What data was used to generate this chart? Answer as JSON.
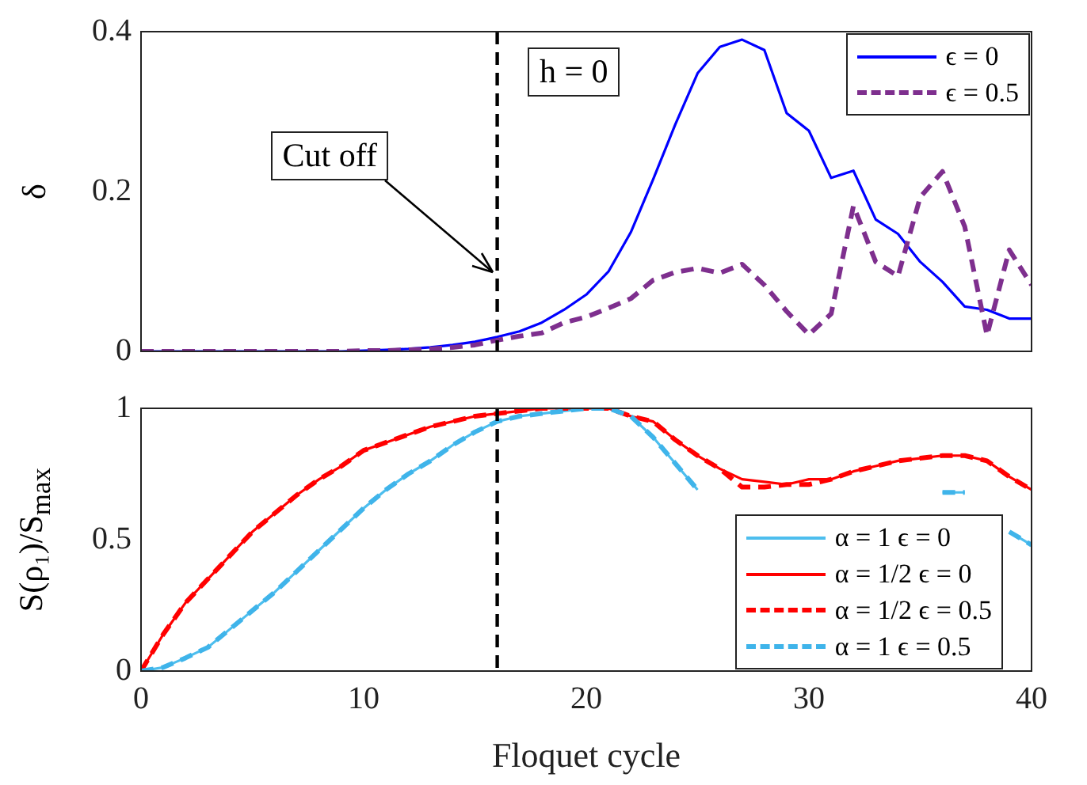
{
  "chart_data": [
    {
      "type": "line",
      "ylabel": "δ",
      "x": [
        0,
        1,
        2,
        3,
        4,
        5,
        6,
        7,
        8,
        9,
        10,
        11,
        12,
        13,
        14,
        15,
        16,
        17,
        18,
        19,
        20,
        21,
        22,
        23,
        24,
        25,
        26,
        27,
        28,
        29,
        30,
        31,
        32,
        33,
        34,
        35,
        36,
        37,
        38,
        39,
        40
      ],
      "xlim": [
        0,
        40
      ],
      "xticks": [
        0,
        10,
        20,
        30,
        40
      ],
      "ylim": [
        0,
        0.4
      ],
      "yticks": [
        0,
        0.2,
        0.4
      ],
      "tick_labels": "y",
      "legend": "top right",
      "marker": "none",
      "series": [
        {
          "name": "ϵ = 0",
          "color": "#0000ff",
          "line_style": "solid",
          "values": [
            0,
            0,
            0,
            0,
            0,
            0,
            0,
            0,
            0,
            0,
            0.001,
            0.002,
            0.003,
            0.005,
            0.008,
            0.012,
            0.018,
            0.025,
            0.036,
            0.052,
            0.071,
            0.1,
            0.149,
            0.215,
            0.284,
            0.348,
            0.381,
            0.39,
            0.377,
            0.298,
            0.276,
            0.217,
            0.226,
            0.165,
            0.147,
            0.112,
            0.087,
            0.056,
            0.052,
            0.041,
            0.041
          ]
        },
        {
          "name": "ϵ = 0.5",
          "color": "#7e2f8e",
          "line_style": "dashed",
          "values": [
            0,
            0,
            0,
            0,
            0,
            0,
            0,
            0,
            0,
            0,
            0.001,
            0.001,
            0.002,
            0.003,
            0.005,
            0.008,
            0.014,
            0.019,
            0.023,
            0.036,
            0.043,
            0.054,
            0.066,
            0.089,
            0.099,
            0.104,
            0.098,
            0.109,
            0.083,
            0.05,
            0.021,
            0.047,
            0.182,
            0.112,
            0.094,
            0.193,
            0.225,
            0.156,
            0.02,
            0.127,
            0.083
          ]
        }
      ],
      "ref_lines": [
        {
          "axis": "x",
          "value": 16,
          "color": "#000000",
          "line_style": "dashed"
        }
      ],
      "annotations": [
        "h = 0",
        {
          "text": "Cut off",
          "x": 15.8,
          "y": 0.1
        }
      ]
    },
    {
      "type": "line",
      "xlabel": "Floquet cycle",
      "ylabel": "S(ρ₁)/S$_{max}$",
      "x": [
        0,
        1,
        2,
        3,
        4,
        5,
        6,
        7,
        8,
        9,
        10,
        11,
        12,
        13,
        14,
        15,
        16,
        17,
        18,
        19,
        20,
        21,
        22,
        23,
        24,
        25,
        26,
        27,
        28,
        29,
        30,
        31,
        32,
        33,
        34,
        35,
        36,
        37,
        38,
        39,
        40
      ],
      "xlim": [
        0,
        40
      ],
      "xticks": [
        0,
        10,
        20,
        30,
        40
      ],
      "ylim": [
        0,
        1
      ],
      "yticks": [
        0,
        0.5,
        1
      ],
      "legend": "bottom right",
      "marker": "none",
      "series": [
        {
          "name": "α = 1 ϵ = 0",
          "color": "#4dbeee",
          "line_style": "solid",
          "values": [
            0,
            0.014,
            0.05,
            0.09,
            0.16,
            0.23,
            0.3,
            0.38,
            0.46,
            0.54,
            0.62,
            0.69,
            0.75,
            0.8,
            0.86,
            0.91,
            0.95,
            0.97,
            0.98,
            0.99,
            1,
            1,
            0.97,
            0.89,
            0.79,
            0.69,
            null,
            null,
            null,
            null,
            null,
            null,
            null,
            null,
            null,
            null,
            0.68,
            0.68,
            null,
            0.53,
            0.48
          ]
        },
        {
          "name": "α = 1/2 ϵ = 0",
          "color": "#ff0000",
          "line_style": "solid",
          "values": [
            0,
            0.14,
            0.26,
            0.35,
            0.44,
            0.53,
            0.6,
            0.67,
            0.73,
            0.78,
            0.84,
            0.87,
            0.9,
            0.93,
            0.95,
            0.97,
            0.98,
            0.99,
            1,
            1,
            1,
            1,
            0.97,
            0.95,
            0.88,
            0.82,
            0.77,
            0.73,
            0.72,
            0.71,
            0.73,
            0.73,
            0.76,
            0.78,
            0.8,
            0.81,
            0.82,
            0.82,
            0.8,
            0.74,
            0.69
          ]
        },
        {
          "name": "α = 1/2 ϵ = 0.5",
          "color": "#ff0000",
          "line_style": "dashed",
          "values": [
            0,
            0.14,
            0.26,
            0.35,
            0.44,
            0.53,
            0.6,
            0.67,
            0.73,
            0.78,
            0.84,
            0.87,
            0.9,
            0.93,
            0.95,
            0.97,
            0.98,
            0.99,
            1,
            1,
            1,
            1,
            0.97,
            0.95,
            0.88,
            0.82,
            0.77,
            0.7,
            0.7,
            0.71,
            0.71,
            0.73,
            0.76,
            0.78,
            0.8,
            0.81,
            0.82,
            0.82,
            0.8,
            0.74,
            0.69
          ]
        },
        {
          "name": "α = 1 ϵ = 0.5",
          "color": "#3fb4ea",
          "line_style": "dashed",
          "values": [
            0,
            0.014,
            0.05,
            0.09,
            0.16,
            0.23,
            0.3,
            0.38,
            0.46,
            0.54,
            0.62,
            0.69,
            0.75,
            0.8,
            0.86,
            0.91,
            0.95,
            0.97,
            0.98,
            0.99,
            1,
            1,
            0.97,
            0.89,
            0.79,
            0.69,
            null,
            null,
            null,
            null,
            null,
            null,
            null,
            null,
            null,
            null,
            0.68,
            0.68,
            null,
            0.53,
            0.48
          ]
        }
      ],
      "ref_lines": [
        {
          "axis": "x",
          "value": 16,
          "color": "#000000",
          "line_style": "dashed"
        }
      ]
    }
  ]
}
